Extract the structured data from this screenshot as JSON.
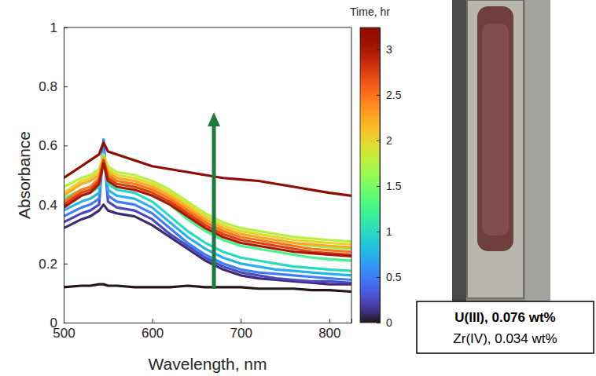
{
  "chart_data": {
    "type": "line",
    "x_label": "Wavelength, nm",
    "y_label": "Absorbance",
    "x": [
      500,
      520,
      530,
      540,
      545,
      550,
      560,
      580,
      600,
      620,
      640,
      660,
      680,
      700,
      720,
      740,
      760,
      780,
      800,
      825
    ],
    "xlim": [
      500,
      825
    ],
    "xticks": [
      500,
      600,
      700,
      800
    ],
    "ylim": [
      0,
      1
    ],
    "yticks": [
      0,
      0.2,
      0.4,
      0.6,
      0.8,
      1
    ],
    "colorbar": {
      "label": "Time, hr",
      "range": [
        0,
        3.24
      ],
      "ticks": [
        0,
        0.5,
        1,
        1.5,
        2,
        2.5,
        3
      ]
    },
    "series": [
      {
        "time": 0,
        "values": [
          0.12,
          0.125,
          0.125,
          0.13,
          0.13,
          0.125,
          0.125,
          0.12,
          0.12,
          0.12,
          0.125,
          0.12,
          0.12,
          0.12,
          0.115,
          0.115,
          0.115,
          0.11,
          0.11,
          0.105
        ]
      },
      {
        "time": 0.1,
        "values": [
          0.32,
          0.35,
          0.36,
          0.38,
          0.4,
          0.38,
          0.37,
          0.36,
          0.33,
          0.29,
          0.25,
          0.21,
          0.18,
          0.16,
          0.15,
          0.145,
          0.14,
          0.135,
          0.13,
          0.13
        ]
      },
      {
        "time": 0.25,
        "values": [
          0.34,
          0.37,
          0.38,
          0.4,
          0.6,
          0.41,
          0.39,
          0.38,
          0.35,
          0.3,
          0.26,
          0.22,
          0.19,
          0.17,
          0.16,
          0.15,
          0.145,
          0.14,
          0.14,
          0.135
        ]
      },
      {
        "time": 0.5,
        "values": [
          0.36,
          0.39,
          0.4,
          0.42,
          0.62,
          0.43,
          0.41,
          0.4,
          0.37,
          0.32,
          0.27,
          0.23,
          0.2,
          0.18,
          0.17,
          0.165,
          0.16,
          0.155,
          0.15,
          0.145
        ]
      },
      {
        "time": 0.75,
        "values": [
          0.38,
          0.41,
          0.42,
          0.44,
          0.58,
          0.45,
          0.43,
          0.42,
          0.39,
          0.34,
          0.29,
          0.25,
          0.22,
          0.2,
          0.19,
          0.18,
          0.175,
          0.17,
          0.165,
          0.16
        ]
      },
      {
        "time": 1,
        "values": [
          0.4,
          0.43,
          0.44,
          0.46,
          0.56,
          0.47,
          0.45,
          0.44,
          0.41,
          0.36,
          0.31,
          0.27,
          0.24,
          0.22,
          0.21,
          0.2,
          0.19,
          0.185,
          0.18,
          0.175
        ]
      },
      {
        "time": 1.25,
        "values": [
          0.42,
          0.45,
          0.46,
          0.48,
          0.55,
          0.49,
          0.47,
          0.46,
          0.44,
          0.4,
          0.35,
          0.31,
          0.28,
          0.26,
          0.25,
          0.24,
          0.23,
          0.22,
          0.215,
          0.21
        ]
      },
      {
        "time": 1.5,
        "values": [
          0.44,
          0.47,
          0.48,
          0.5,
          0.56,
          0.51,
          0.49,
          0.48,
          0.46,
          0.43,
          0.39,
          0.35,
          0.32,
          0.3,
          0.29,
          0.28,
          0.27,
          0.26,
          0.255,
          0.25
        ]
      },
      {
        "time": 1.75,
        "values": [
          0.46,
          0.49,
          0.5,
          0.52,
          0.57,
          0.53,
          0.51,
          0.5,
          0.48,
          0.45,
          0.41,
          0.37,
          0.34,
          0.32,
          0.31,
          0.3,
          0.29,
          0.285,
          0.28,
          0.275
        ]
      },
      {
        "time": 2,
        "values": [
          0.44,
          0.48,
          0.49,
          0.51,
          0.55,
          0.52,
          0.5,
          0.49,
          0.47,
          0.44,
          0.4,
          0.36,
          0.33,
          0.31,
          0.3,
          0.29,
          0.28,
          0.275,
          0.27,
          0.265
        ]
      },
      {
        "time": 2.25,
        "values": [
          0.43,
          0.47,
          0.48,
          0.5,
          0.56,
          0.51,
          0.49,
          0.48,
          0.46,
          0.43,
          0.39,
          0.35,
          0.32,
          0.3,
          0.29,
          0.28,
          0.27,
          0.265,
          0.26,
          0.255
        ]
      },
      {
        "time": 2.5,
        "values": [
          0.41,
          0.45,
          0.46,
          0.49,
          0.55,
          0.5,
          0.48,
          0.47,
          0.45,
          0.42,
          0.38,
          0.34,
          0.31,
          0.29,
          0.28,
          0.27,
          0.26,
          0.25,
          0.245,
          0.24
        ]
      },
      {
        "time": 2.75,
        "values": [
          0.4,
          0.44,
          0.45,
          0.48,
          0.55,
          0.49,
          0.47,
          0.46,
          0.44,
          0.41,
          0.37,
          0.33,
          0.3,
          0.28,
          0.27,
          0.26,
          0.25,
          0.24,
          0.235,
          0.23
        ]
      },
      {
        "time": 3,
        "values": [
          0.39,
          0.43,
          0.44,
          0.47,
          0.54,
          0.48,
          0.46,
          0.45,
          0.43,
          0.4,
          0.36,
          0.32,
          0.29,
          0.27,
          0.26,
          0.25,
          0.24,
          0.235,
          0.23,
          0.225
        ]
      },
      {
        "time": 3.24,
        "values": [
          0.49,
          0.53,
          0.55,
          0.57,
          0.61,
          0.58,
          0.57,
          0.55,
          0.53,
          0.52,
          0.51,
          0.5,
          0.49,
          0.485,
          0.48,
          0.47,
          0.46,
          0.45,
          0.44,
          0.43
        ]
      }
    ],
    "annotations": [
      "U(III), 0.076 wt%",
      "Zr(IV), 0.034 wt%"
    ]
  }
}
